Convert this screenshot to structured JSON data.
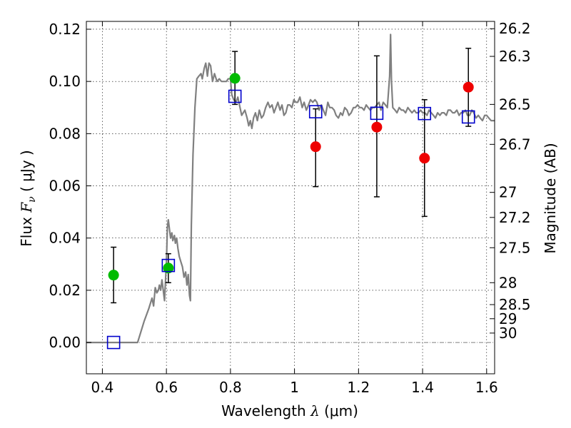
{
  "chart_data": {
    "type": "scatter",
    "xlabel_prefix": "Wavelength",
    "xlabel_symbol": "λ",
    "xlabel_unit": "(μm)",
    "ylabel_prefix": "Flux",
    "ylabel_symbol": "F",
    "ylabel_subscript": "ν",
    "ylabel_unit": "( μJy )",
    "y2label": "Magnitude (AB)",
    "xlim": [
      0.35,
      1.625
    ],
    "ylim": [
      -0.012,
      0.123
    ],
    "x_ticks": [
      0.4,
      0.6,
      0.8,
      1.0,
      1.2,
      1.4,
      1.6
    ],
    "x_tick_labels": [
      "0.4",
      "0.6",
      "0.8",
      "1",
      "1.2",
      "1.4",
      "1.6"
    ],
    "y_ticks": [
      0.0,
      0.02,
      0.04,
      0.06,
      0.08,
      0.1,
      0.12
    ],
    "y_tick_labels": [
      "0.00",
      "0.02",
      "0.04",
      "0.06",
      "0.08",
      "0.10",
      "0.12"
    ],
    "mag_ticks": [
      {
        "label": "26.2",
        "flux": 0.1202
      },
      {
        "label": "26.3",
        "flux": 0.1096
      },
      {
        "label": "26.5",
        "flux": 0.0912
      },
      {
        "label": "26.7",
        "flux": 0.0759
      },
      {
        "label": "27",
        "flux": 0.0575
      },
      {
        "label": "27.2",
        "flux": 0.0479
      },
      {
        "label": "27.5",
        "flux": 0.0363
      },
      {
        "label": "28",
        "flux": 0.0229
      },
      {
        "label": "28.5",
        "flux": 0.0145
      },
      {
        "label": "29",
        "flux": 0.0091
      },
      {
        "label": "30",
        "flux": 0.0036
      }
    ],
    "grid": true,
    "series": [
      {
        "kind": "model_spectrum",
        "color": "#808080",
        "points": [
          [
            0.35,
            0.0
          ],
          [
            0.5,
            0.0
          ],
          [
            0.51,
            0.0
          ],
          [
            0.53,
            0.008
          ],
          [
            0.545,
            0.013
          ],
          [
            0.555,
            0.017
          ],
          [
            0.56,
            0.014
          ],
          [
            0.565,
            0.021
          ],
          [
            0.57,
            0.019
          ],
          [
            0.575,
            0.02
          ],
          [
            0.578,
            0.022
          ],
          [
            0.582,
            0.02
          ],
          [
            0.586,
            0.024
          ],
          [
            0.59,
            0.02
          ],
          [
            0.594,
            0.016
          ],
          [
            0.6,
            0.031
          ],
          [
            0.603,
            0.044
          ],
          [
            0.606,
            0.047
          ],
          [
            0.61,
            0.043
          ],
          [
            0.613,
            0.04
          ],
          [
            0.617,
            0.042
          ],
          [
            0.62,
            0.039
          ],
          [
            0.625,
            0.041
          ],
          [
            0.628,
            0.038
          ],
          [
            0.632,
            0.04
          ],
          [
            0.636,
            0.036
          ],
          [
            0.64,
            0.033
          ],
          [
            0.645,
            0.031
          ],
          [
            0.65,
            0.029
          ],
          [
            0.655,
            0.025
          ],
          [
            0.66,
            0.027
          ],
          [
            0.664,
            0.022
          ],
          [
            0.668,
            0.026
          ],
          [
            0.672,
            0.018
          ],
          [
            0.675,
            0.016
          ],
          [
            0.678,
            0.045
          ],
          [
            0.683,
            0.072
          ],
          [
            0.689,
            0.09
          ],
          [
            0.695,
            0.101
          ],
          [
            0.701,
            0.102
          ],
          [
            0.708,
            0.103
          ],
          [
            0.712,
            0.101
          ],
          [
            0.718,
            0.105
          ],
          [
            0.723,
            0.107
          ],
          [
            0.728,
            0.102
          ],
          [
            0.733,
            0.107
          ],
          [
            0.738,
            0.106
          ],
          [
            0.744,
            0.1
          ],
          [
            0.75,
            0.103
          ],
          [
            0.758,
            0.1
          ],
          [
            0.765,
            0.101
          ],
          [
            0.772,
            0.1
          ],
          [
            0.78,
            0.1
          ],
          [
            0.787,
            0.1
          ],
          [
            0.793,
            0.101
          ],
          [
            0.8,
            0.101
          ],
          [
            0.804,
            0.095
          ],
          [
            0.81,
            0.093
          ],
          [
            0.817,
            0.092
          ],
          [
            0.823,
            0.094
          ],
          [
            0.83,
            0.09
          ],
          [
            0.835,
            0.087
          ],
          [
            0.84,
            0.088
          ],
          [
            0.845,
            0.089
          ],
          [
            0.852,
            0.086
          ],
          [
            0.857,
            0.083
          ],
          [
            0.862,
            0.085
          ],
          [
            0.867,
            0.082
          ],
          [
            0.872,
            0.086
          ],
          [
            0.878,
            0.088
          ],
          [
            0.884,
            0.085
          ],
          [
            0.89,
            0.089
          ],
          [
            0.897,
            0.086
          ],
          [
            0.903,
            0.087
          ],
          [
            0.91,
            0.09
          ],
          [
            0.917,
            0.092
          ],
          [
            0.923,
            0.09
          ],
          [
            0.93,
            0.091
          ],
          [
            0.936,
            0.088
          ],
          [
            0.942,
            0.09
          ],
          [
            0.948,
            0.092
          ],
          [
            0.955,
            0.089
          ],
          [
            0.961,
            0.091
          ],
          [
            0.967,
            0.087
          ],
          [
            0.973,
            0.088
          ],
          [
            0.979,
            0.091
          ],
          [
            0.985,
            0.091
          ],
          [
            0.992,
            0.09
          ],
          [
            0.998,
            0.093
          ],
          [
            1.004,
            0.092
          ],
          [
            1.01,
            0.092
          ],
          [
            1.017,
            0.094
          ],
          [
            1.024,
            0.09
          ],
          [
            1.03,
            0.092
          ],
          [
            1.037,
            0.089
          ],
          [
            1.044,
            0.091
          ],
          [
            1.05,
            0.093
          ],
          [
            1.057,
            0.092
          ],
          [
            1.064,
            0.093
          ],
          [
            1.07,
            0.092
          ],
          [
            1.077,
            0.089
          ],
          [
            1.084,
            0.091
          ],
          [
            1.09,
            0.089
          ],
          [
            1.097,
            0.087
          ],
          [
            1.104,
            0.092
          ],
          [
            1.11,
            0.09
          ],
          [
            1.117,
            0.09
          ],
          [
            1.124,
            0.089
          ],
          [
            1.13,
            0.087
          ],
          [
            1.137,
            0.086
          ],
          [
            1.144,
            0.088
          ],
          [
            1.15,
            0.087
          ],
          [
            1.157,
            0.09
          ],
          [
            1.164,
            0.089
          ],
          [
            1.17,
            0.087
          ],
          [
            1.177,
            0.088
          ],
          [
            1.184,
            0.09
          ],
          [
            1.19,
            0.09
          ],
          [
            1.197,
            0.091
          ],
          [
            1.204,
            0.09
          ],
          [
            1.21,
            0.09
          ],
          [
            1.217,
            0.089
          ],
          [
            1.224,
            0.091
          ],
          [
            1.23,
            0.09
          ],
          [
            1.237,
            0.089
          ],
          [
            1.244,
            0.09
          ],
          [
            1.25,
            0.09
          ],
          [
            1.257,
            0.091
          ],
          [
            1.264,
            0.092
          ],
          [
            1.27,
            0.089
          ],
          [
            1.277,
            0.092
          ],
          [
            1.284,
            0.091
          ],
          [
            1.29,
            0.09
          ],
          [
            1.297,
            0.102
          ],
          [
            1.3,
            0.118
          ],
          [
            1.303,
            0.1
          ],
          [
            1.307,
            0.09
          ],
          [
            1.314,
            0.089
          ],
          [
            1.32,
            0.088
          ],
          [
            1.327,
            0.09
          ],
          [
            1.334,
            0.089
          ],
          [
            1.34,
            0.089
          ],
          [
            1.347,
            0.088
          ],
          [
            1.354,
            0.09
          ],
          [
            1.36,
            0.089
          ],
          [
            1.367,
            0.088
          ],
          [
            1.374,
            0.089
          ],
          [
            1.38,
            0.088
          ],
          [
            1.387,
            0.088
          ],
          [
            1.394,
            0.089
          ],
          [
            1.4,
            0.088
          ],
          [
            1.407,
            0.088
          ],
          [
            1.414,
            0.087
          ],
          [
            1.42,
            0.089
          ],
          [
            1.427,
            0.088
          ],
          [
            1.434,
            0.087
          ],
          [
            1.44,
            0.086
          ],
          [
            1.447,
            0.088
          ],
          [
            1.454,
            0.087
          ],
          [
            1.46,
            0.088
          ],
          [
            1.467,
            0.088
          ],
          [
            1.474,
            0.087
          ],
          [
            1.48,
            0.089
          ],
          [
            1.487,
            0.089
          ],
          [
            1.494,
            0.088
          ],
          [
            1.5,
            0.088
          ],
          [
            1.507,
            0.089
          ],
          [
            1.514,
            0.087
          ],
          [
            1.52,
            0.088
          ],
          [
            1.527,
            0.088
          ],
          [
            1.534,
            0.089
          ],
          [
            1.54,
            0.087
          ],
          [
            1.547,
            0.087
          ],
          [
            1.554,
            0.089
          ],
          [
            1.56,
            0.088
          ],
          [
            1.567,
            0.086
          ],
          [
            1.574,
            0.087
          ],
          [
            1.58,
            0.086
          ],
          [
            1.587,
            0.085
          ],
          [
            1.594,
            0.087
          ],
          [
            1.6,
            0.087
          ],
          [
            1.607,
            0.086
          ],
          [
            1.614,
            0.085
          ],
          [
            1.625,
            0.085
          ]
        ]
      },
      {
        "kind": "observed_green",
        "color": "#00bb00",
        "points": [
          {
            "x": 0.435,
            "y": 0.0258,
            "lo": 0.0152,
            "hi": 0.0365
          },
          {
            "x": 0.606,
            "y": 0.0285,
            "lo": 0.0229,
            "hi": 0.034
          },
          {
            "x": 0.814,
            "y": 0.1012,
            "lo": 0.0912,
            "hi": 0.1115
          }
        ]
      },
      {
        "kind": "observed_red",
        "color": "#ee0000",
        "points": [
          {
            "x": 1.066,
            "y": 0.075,
            "lo": 0.0597,
            "hi": 0.0895
          },
          {
            "x": 1.257,
            "y": 0.0825,
            "lo": 0.0558,
            "hi": 0.1098
          },
          {
            "x": 1.406,
            "y": 0.0706,
            "lo": 0.0483,
            "hi": 0.093
          },
          {
            "x": 1.543,
            "y": 0.0978,
            "lo": 0.0828,
            "hi": 0.1127
          }
        ]
      },
      {
        "kind": "model_photometry",
        "color": "#0000cc",
        "points": [
          {
            "x": 0.435,
            "y": 0.0
          },
          {
            "x": 0.606,
            "y": 0.0295
          },
          {
            "x": 0.814,
            "y": 0.0943
          },
          {
            "x": 1.066,
            "y": 0.0884
          },
          {
            "x": 1.257,
            "y": 0.0878
          },
          {
            "x": 1.406,
            "y": 0.0877
          },
          {
            "x": 1.543,
            "y": 0.0864
          }
        ]
      }
    ]
  }
}
